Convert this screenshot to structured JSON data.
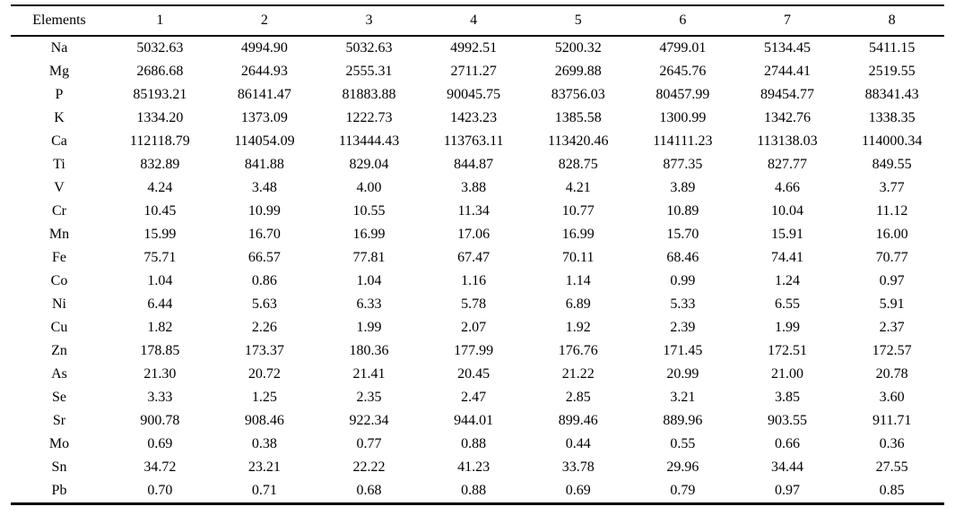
{
  "chart_data": {
    "type": "table",
    "columns": [
      "Elements",
      "1",
      "2",
      "3",
      "4",
      "5",
      "6",
      "7",
      "8"
    ],
    "rows": [
      {
        "element": "Na",
        "values": [
          "5032.63",
          "4994.90",
          "5032.63",
          "4992.51",
          "5200.32",
          "4799.01",
          "5134.45",
          "5411.15"
        ]
      },
      {
        "element": "Mg",
        "values": [
          "2686.68",
          "2644.93",
          "2555.31",
          "2711.27",
          "2699.88",
          "2645.76",
          "2744.41",
          "2519.55"
        ]
      },
      {
        "element": "P",
        "values": [
          "85193.21",
          "86141.47",
          "81883.88",
          "90045.75",
          "83756.03",
          "80457.99",
          "89454.77",
          "88341.43"
        ]
      },
      {
        "element": "K",
        "values": [
          "1334.20",
          "1373.09",
          "1222.73",
          "1423.23",
          "1385.58",
          "1300.99",
          "1342.76",
          "1338.35"
        ]
      },
      {
        "element": "Ca",
        "values": [
          "112118.79",
          "114054.09",
          "113444.43",
          "113763.11",
          "113420.46",
          "114111.23",
          "113138.03",
          "114000.34"
        ]
      },
      {
        "element": "Ti",
        "values": [
          "832.89",
          "841.88",
          "829.04",
          "844.87",
          "828.75",
          "877.35",
          "827.77",
          "849.55"
        ]
      },
      {
        "element": "V",
        "values": [
          "4.24",
          "3.48",
          "4.00",
          "3.88",
          "4.21",
          "3.89",
          "4.66",
          "3.77"
        ]
      },
      {
        "element": "Cr",
        "values": [
          "10.45",
          "10.99",
          "10.55",
          "11.34",
          "10.77",
          "10.89",
          "10.04",
          "11.12"
        ]
      },
      {
        "element": "Mn",
        "values": [
          "15.99",
          "16.70",
          "16.99",
          "17.06",
          "16.99",
          "15.70",
          "15.91",
          "16.00"
        ]
      },
      {
        "element": "Fe",
        "values": [
          "75.71",
          "66.57",
          "77.81",
          "67.47",
          "70.11",
          "68.46",
          "74.41",
          "70.77"
        ]
      },
      {
        "element": "Co",
        "values": [
          "1.04",
          "0.86",
          "1.04",
          "1.16",
          "1.14",
          "0.99",
          "1.24",
          "0.97"
        ]
      },
      {
        "element": "Ni",
        "values": [
          "6.44",
          "5.63",
          "6.33",
          "5.78",
          "6.89",
          "5.33",
          "6.55",
          "5.91"
        ]
      },
      {
        "element": "Cu",
        "values": [
          "1.82",
          "2.26",
          "1.99",
          "2.07",
          "1.92",
          "2.39",
          "1.99",
          "2.37"
        ]
      },
      {
        "element": "Zn",
        "values": [
          "178.85",
          "173.37",
          "180.36",
          "177.99",
          "176.76",
          "171.45",
          "172.51",
          "172.57"
        ]
      },
      {
        "element": "As",
        "values": [
          "21.30",
          "20.72",
          "21.41",
          "20.45",
          "21.22",
          "20.99",
          "21.00",
          "20.78"
        ]
      },
      {
        "element": "Se",
        "values": [
          "3.33",
          "1.25",
          "2.35",
          "2.47",
          "2.85",
          "3.21",
          "3.85",
          "3.60"
        ]
      },
      {
        "element": "Sr",
        "values": [
          "900.78",
          "908.46",
          "922.34",
          "944.01",
          "899.46",
          "889.96",
          "903.55",
          "911.71"
        ]
      },
      {
        "element": "Mo",
        "values": [
          "0.69",
          "0.38",
          "0.77",
          "0.88",
          "0.44",
          "0.55",
          "0.66",
          "0.36"
        ]
      },
      {
        "element": "Sn",
        "values": [
          "34.72",
          "23.21",
          "22.22",
          "41.23",
          "33.78",
          "29.96",
          "34.44",
          "27.55"
        ]
      },
      {
        "element": "Pb",
        "values": [
          "0.70",
          "0.71",
          "0.68",
          "0.88",
          "0.69",
          "0.79",
          "0.97",
          "0.85"
        ]
      }
    ]
  }
}
